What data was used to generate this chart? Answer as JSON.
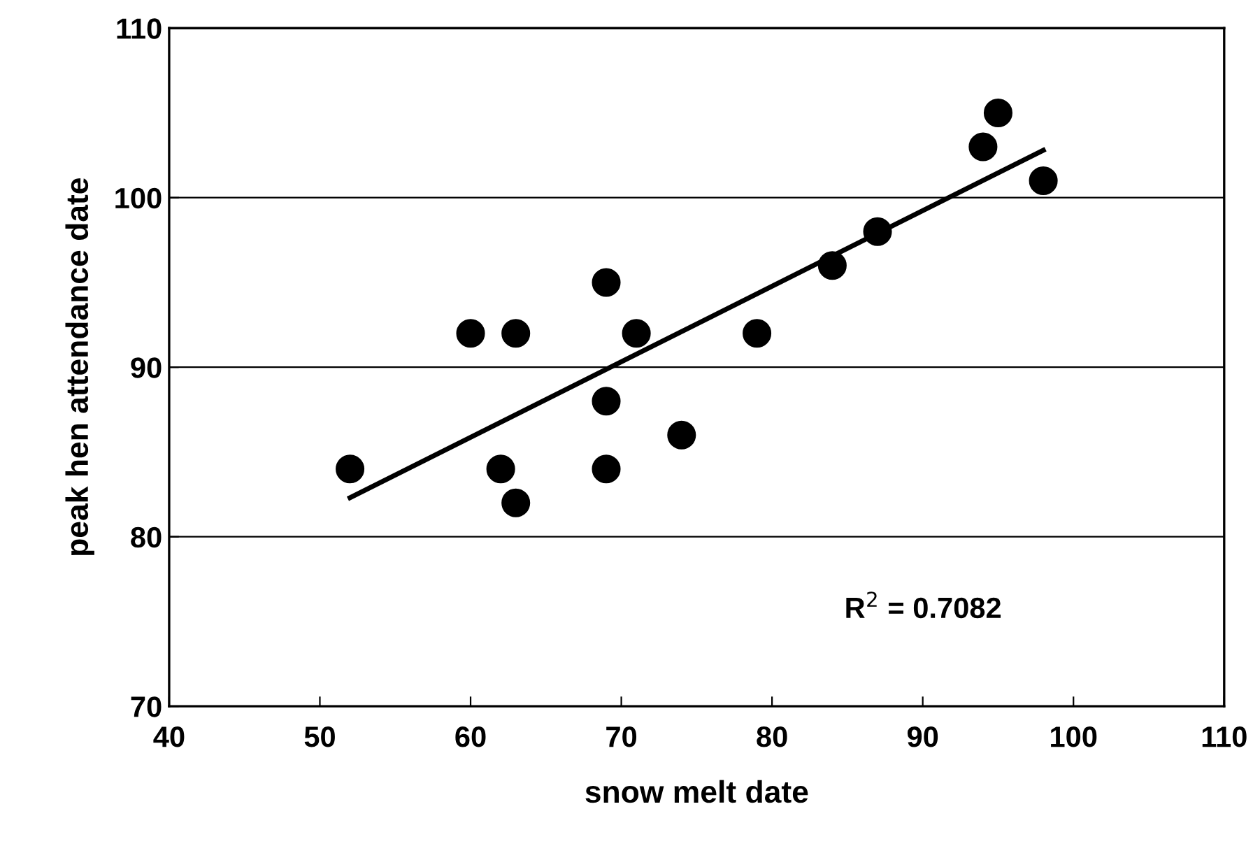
{
  "chart_data": {
    "type": "scatter",
    "xlabel": "snow melt date",
    "ylabel": "peak hen attendance date",
    "xlim": [
      40,
      110
    ],
    "ylim": [
      70,
      110
    ],
    "xticks": [
      40,
      50,
      60,
      70,
      80,
      90,
      100,
      110
    ],
    "yticks": [
      70,
      80,
      90,
      100,
      110
    ],
    "grid": "y",
    "legend": false,
    "series": [
      {
        "marker": "circle",
        "color": "#000000",
        "x": [
          52,
          60,
          63,
          62,
          63,
          69,
          69,
          69,
          71,
          74,
          79,
          84,
          87,
          94,
          95,
          98
        ],
        "values": [
          84,
          92,
          92,
          84,
          82,
          95,
          88,
          84,
          92,
          86,
          92,
          96,
          98,
          103,
          105,
          101
        ]
      },
      {
        "type": "line",
        "color": "#000000",
        "x": [
          52,
          98
        ],
        "values": [
          82.3,
          102.8
        ]
      }
    ],
    "annotations": [
      "R$^{2}$ = 0.7082"
    ]
  }
}
